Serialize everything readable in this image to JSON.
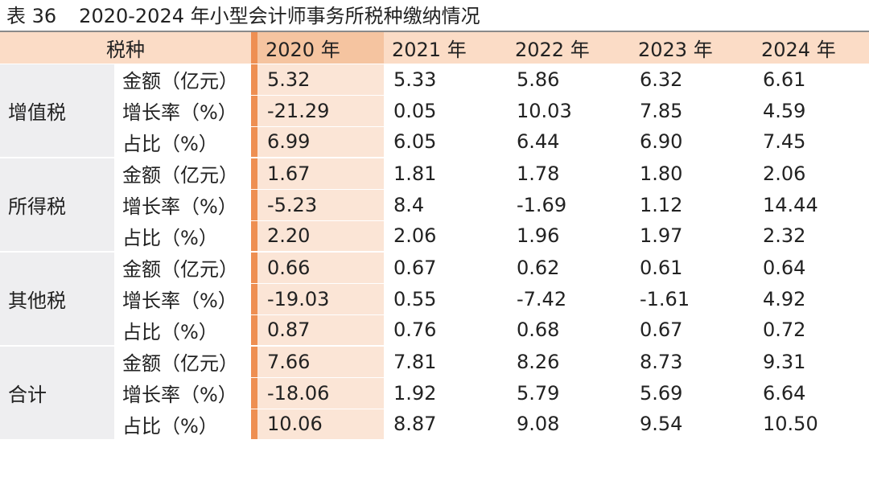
{
  "caption": {
    "number": "表 36",
    "title": "2020-2024 年小型会计师事务所税种缴纳情况"
  },
  "header": {
    "type_label": "税种",
    "years": [
      "2020 年",
      "2021 年",
      "2022 年",
      "2023 年",
      "2024 年"
    ]
  },
  "groups": [
    {
      "name": "增值税",
      "rows": [
        {
          "metric": "金额（亿元）",
          "values": [
            "5.32",
            "5.33",
            "5.86",
            "6.32",
            "6.61"
          ]
        },
        {
          "metric": "增长率（%）",
          "values": [
            "-21.29",
            "0.05",
            "10.03",
            "7.85",
            "4.59"
          ]
        },
        {
          "metric": "占比（%）",
          "values": [
            "6.99",
            "6.05",
            "6.44",
            "6.90",
            "7.45"
          ]
        }
      ]
    },
    {
      "name": "所得税",
      "rows": [
        {
          "metric": "金额（亿元）",
          "values": [
            "1.67",
            "1.81",
            "1.78",
            "1.80",
            "2.06"
          ]
        },
        {
          "metric": "增长率（%）",
          "values": [
            "-5.23",
            "8.4",
            "-1.69",
            "1.12",
            "14.44"
          ]
        },
        {
          "metric": "占比（%）",
          "values": [
            "2.20",
            "2.06",
            "1.96",
            "1.97",
            "2.32"
          ]
        }
      ]
    },
    {
      "name": "其他税",
      "rows": [
        {
          "metric": "金额（亿元）",
          "values": [
            "0.66",
            "0.67",
            "0.62",
            "0.61",
            "0.64"
          ]
        },
        {
          "metric": "增长率（%）",
          "values": [
            "-19.03",
            "0.55",
            "-7.42",
            "-1.61",
            "4.92"
          ]
        },
        {
          "metric": "占比（%）",
          "values": [
            "0.87",
            "0.76",
            "0.68",
            "0.67",
            "0.72"
          ]
        }
      ]
    },
    {
      "name": "合计",
      "rows": [
        {
          "metric": "金额（亿元）",
          "values": [
            "7.66",
            "7.81",
            "8.26",
            "8.73",
            "9.31"
          ]
        },
        {
          "metric": "增长率（%）",
          "values": [
            "-18.06",
            "1.92",
            "5.79",
            "5.69",
            "6.64"
          ]
        },
        {
          "metric": "占比（%）",
          "values": [
            "10.06",
            "8.87",
            "9.08",
            "9.54",
            "10.50"
          ]
        }
      ]
    }
  ],
  "colors": {
    "header_bg": "#fbdcc6",
    "accent_bar": "#ee8f52",
    "first_year_bg": "#fbe5d6",
    "row_shade": "#eeeef0"
  }
}
